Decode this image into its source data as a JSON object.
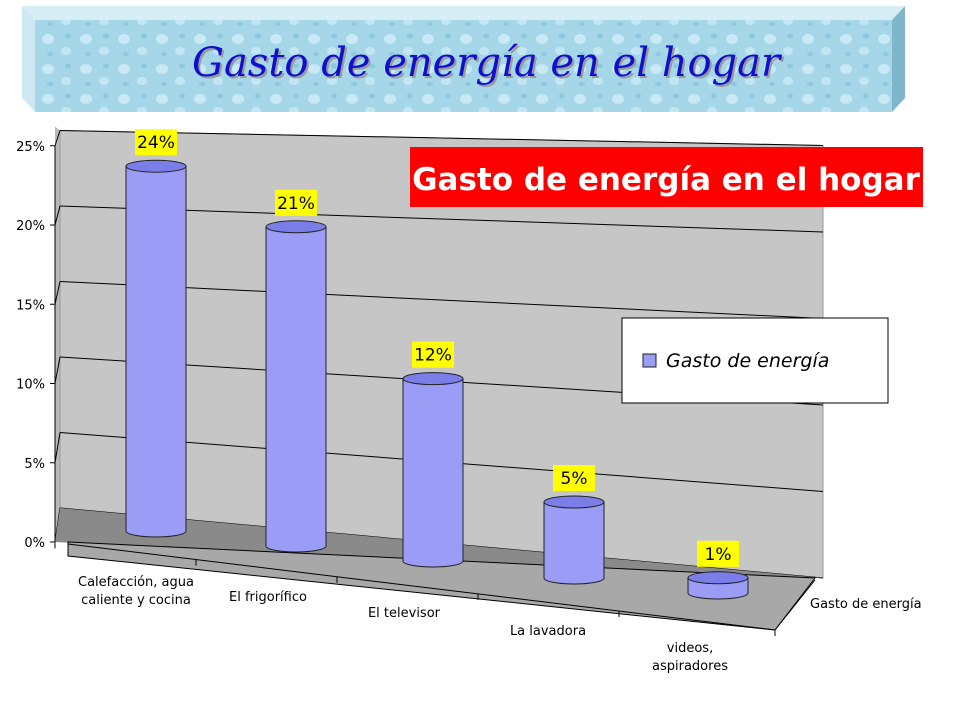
{
  "banner": {
    "title": "Gasto de energía en el hogar"
  },
  "chart_data": {
    "type": "bar",
    "title": "Gasto de energía en el hogar",
    "categories": [
      "Calefacción, agua caliente y cocina",
      "El frigorífico",
      "El televisor",
      "La lavadora",
      "videos, aspiradores"
    ],
    "series": [
      {
        "name": "Gasto de energía",
        "values": [
          24,
          21,
          12,
          5,
          1
        ]
      }
    ],
    "data_labels": [
      "24%",
      "21%",
      "12%",
      "5%",
      "1%"
    ],
    "y_ticks": [
      "0%",
      "5%",
      "10%",
      "15%",
      "20%",
      "25%"
    ],
    "ylim": [
      0,
      25
    ],
    "depth_axis_label": "Gasto de energía",
    "legend_placement": "right",
    "grid": true,
    "colors": {
      "bar": "#9a9cf5",
      "bar_top": "#7b7de8",
      "title_box": "#ff0000",
      "label_bg": "#ffff00",
      "wall": "#c6c6c6",
      "floor": "#8a8a8a",
      "banner": "#9fd3e6"
    }
  }
}
